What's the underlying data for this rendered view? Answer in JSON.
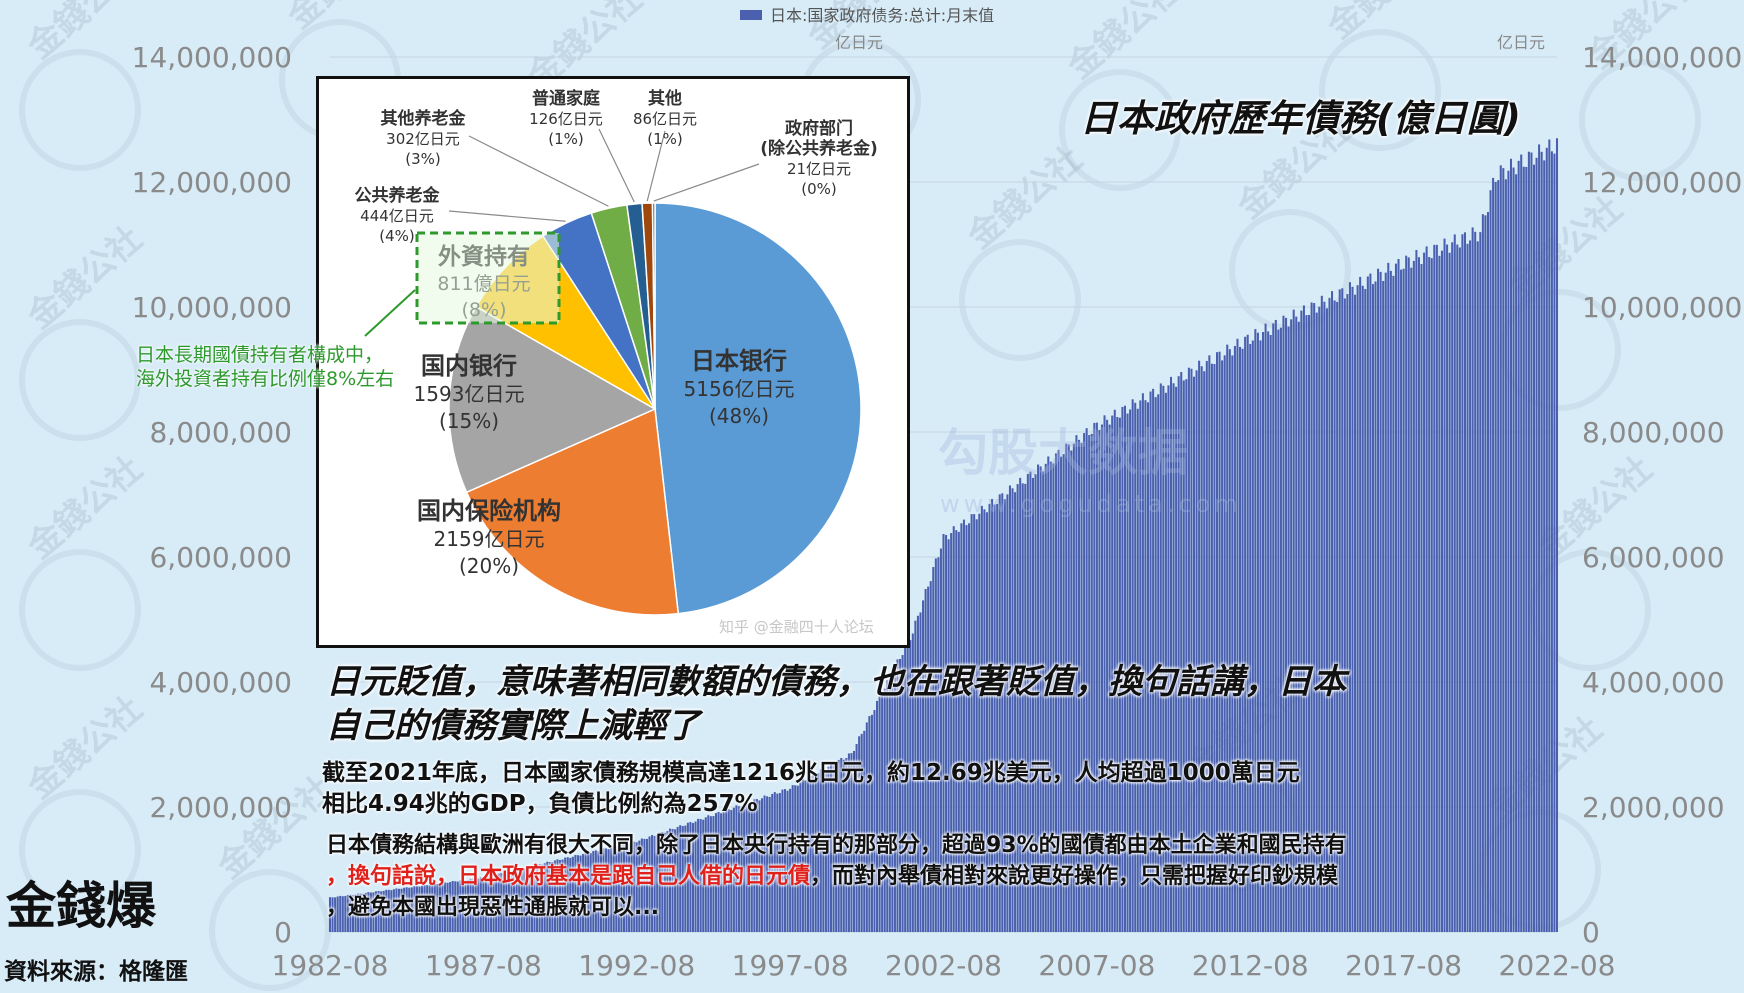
{
  "title": "日本政府歷年債務(億日圓)",
  "headline_line1": "日元貶值，意味著相同數額的債務，也在跟著貶值，換句話講，日本",
  "headline_line2": "自己的債務實際上減輕了",
  "para1_line1": "截至2021年底，日本國家債務規模高達1216兆日元，約12.69兆美元，人均超過1000萬日元",
  "para1_line2": "相比4.94兆的GDP，負債比例約為257%",
  "para2_line1": "日本債務結構與歐洲有很大不同，除了日本央行持有的那部分，超過93%的國債都由本土企業和國民持有",
  "para2_line2_red": "，換句話說，日本政府基本是跟自己人借的日元債",
  "para2_line2_rest": "，而對內舉債相對來說更好操作，只需把握好印鈔規模",
  "para2_line3": "，避免本國出現惡性通脹就可以...",
  "green_note_line1": "日本長期國債持有者構成中，",
  "green_note_line2": "海外投資者持有比例僅8%左右",
  "source": "資料來源：格隆匯",
  "logo_text": "金錢爆",
  "watermark_text": "金錢公社",
  "colors": {
    "background": "#d8ecf8",
    "bar": "#4a5fae",
    "axis_text": "#8a8a8a",
    "green": "#2e9a2e",
    "red": "#e0211b"
  },
  "chart_data": [
    {
      "type": "bar",
      "legend": "日本:国家政府债务:总计:月末值",
      "legend_position": "top-center",
      "unit_left": "亿日元",
      "unit_right": "亿日元",
      "ylim": [
        0,
        14000000
      ],
      "y_ticks": [
        "0",
        "2,000,000",
        "4,000,000",
        "6,000,000",
        "8,000,000",
        "10,000,000",
        "12,000,000",
        "14,000,000"
      ],
      "x_ticks": [
        "1982-08",
        "1987-08",
        "1992-08",
        "1997-08",
        "2002-08",
        "2007-08",
        "2012-08",
        "2017-08",
        "2022-08"
      ],
      "x_range": [
        "1982-08",
        "2022-08"
      ],
      "grid": true,
      "anchors": [
        {
          "x": "1982-08",
          "y": 550000
        },
        {
          "x": "1987-08",
          "y": 870000
        },
        {
          "x": "1992-08",
          "y": 1450000
        },
        {
          "x": "1997-08",
          "y": 2300000
        },
        {
          "x": "1999-08",
          "y": 2850000
        },
        {
          "x": "2001-08",
          "y": 4800000
        },
        {
          "x": "2002-08",
          "y": 6300000
        },
        {
          "x": "2004-08",
          "y": 7000000
        },
        {
          "x": "2007-08",
          "y": 8100000
        },
        {
          "x": "2012-08",
          "y": 9500000
        },
        {
          "x": "2017-08",
          "y": 10700000
        },
        {
          "x": "2020-02",
          "y": 11200000
        },
        {
          "x": "2020-08",
          "y": 12100000
        },
        {
          "x": "2022-08",
          "y": 12600000
        }
      ]
    },
    {
      "type": "pie",
      "watermark": "知乎 @金融四十人论坛",
      "slices": [
        {
          "name": "日本银行",
          "value_label": "5156亿日元",
          "percent_label": "(48%)",
          "value": 5156,
          "color": "#5b9bd5"
        },
        {
          "name": "国内保险机构",
          "value_label": "2159亿日元",
          "percent_label": "(20%)",
          "value": 2159,
          "color": "#ed7d31"
        },
        {
          "name": "国内银行",
          "value_label": "1593亿日元",
          "percent_label": "(15%)",
          "value": 1593,
          "color": "#a5a5a5"
        },
        {
          "name": "外資持有",
          "value_label": "811億日元",
          "percent_label": "(8%)",
          "value": 811,
          "color": "#ffc000"
        },
        {
          "name": "公共养老金",
          "value_label": "444亿日元",
          "percent_label": "(4%)",
          "value": 444,
          "color": "#4472c4"
        },
        {
          "name": "其他养老金",
          "value_label": "302亿日元",
          "percent_label": "(3%)",
          "value": 302,
          "color": "#70ad47"
        },
        {
          "name": "普通家庭",
          "value_label": "126亿日元",
          "percent_label": "(1%)",
          "value": 126,
          "color": "#255e91"
        },
        {
          "name": "其他",
          "value_label": "86亿日元",
          "percent_label": "(1%)",
          "value": 86,
          "color": "#9e480e"
        },
        {
          "name": "政府部门",
          "name2": "(除公共养老金)",
          "value_label": "21亿日元",
          "percent_label": "(0%)",
          "value": 21,
          "color": "#636363"
        }
      ]
    }
  ]
}
